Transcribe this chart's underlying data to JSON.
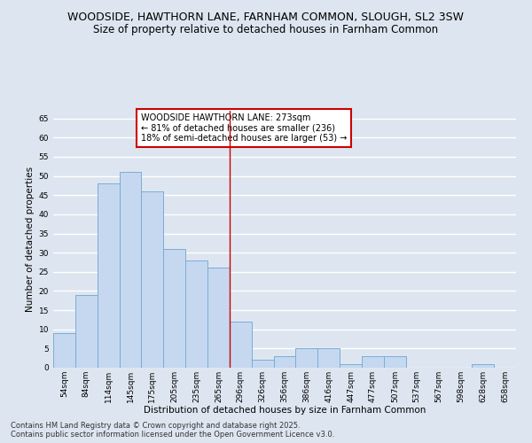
{
  "title": "WOODSIDE, HAWTHORN LANE, FARNHAM COMMON, SLOUGH, SL2 3SW",
  "subtitle": "Size of property relative to detached houses in Farnham Common",
  "xlabel": "Distribution of detached houses by size in Farnham Common",
  "ylabel": "Number of detached properties",
  "categories": [
    "54sqm",
    "84sqm",
    "114sqm",
    "145sqm",
    "175sqm",
    "205sqm",
    "235sqm",
    "265sqm",
    "296sqm",
    "326sqm",
    "356sqm",
    "386sqm",
    "416sqm",
    "447sqm",
    "477sqm",
    "507sqm",
    "537sqm",
    "567sqm",
    "598sqm",
    "628sqm",
    "658sqm"
  ],
  "values": [
    9,
    19,
    48,
    51,
    46,
    31,
    28,
    26,
    12,
    2,
    3,
    5,
    5,
    1,
    3,
    3,
    0,
    0,
    0,
    1,
    0
  ],
  "bar_color": "#c5d8f0",
  "bar_edge_color": "#7aadd4",
  "vline_color": "#cc0000",
  "annotation_text": "WOODSIDE HAWTHORN LANE: 273sqm\n← 81% of detached houses are smaller (236)\n18% of semi-detached houses are larger (53) →",
  "annotation_box_color": "white",
  "annotation_box_edge": "#cc0000",
  "ylim": [
    0,
    67
  ],
  "yticks": [
    0,
    5,
    10,
    15,
    20,
    25,
    30,
    35,
    40,
    45,
    50,
    55,
    60,
    65
  ],
  "background_color": "#dde6f0",
  "grid_color": "white",
  "footer_line1": "Contains HM Land Registry data © Crown copyright and database right 2025.",
  "footer_line2": "Contains public sector information licensed under the Open Government Licence v3.0.",
  "title_fontsize": 9,
  "subtitle_fontsize": 8.5,
  "axis_label_fontsize": 7.5,
  "tick_fontsize": 6.5,
  "annotation_fontsize": 7,
  "footer_fontsize": 6
}
